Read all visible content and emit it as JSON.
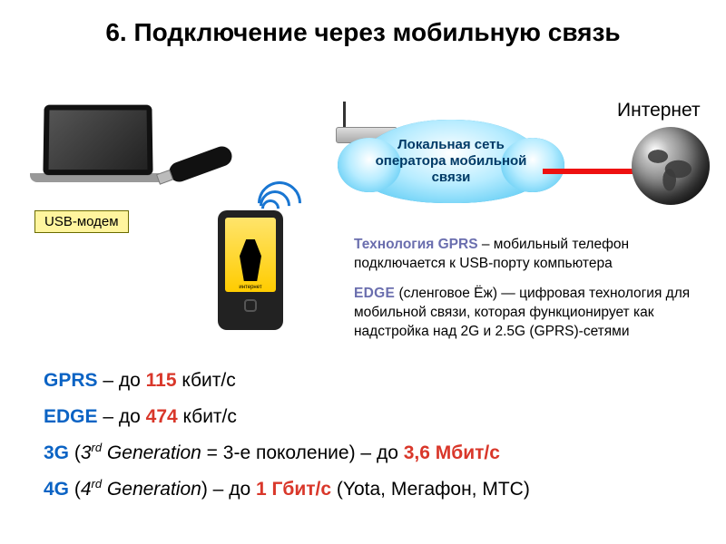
{
  "title": "6. Подключение через мобильную связь",
  "internet_label": "Интернет",
  "cloud_label": "Локальная сеть оператора мобильной связи",
  "usb_modem_label": "USB-модем",
  "phone_screen_caption": "интернет",
  "tech_text": {
    "gprs_kw": "Технология GPRS",
    "gprs_rest": " – мобильный телефон подключается к USB-порту компьютера",
    "edge_kw": "EDGE",
    "edge_rest": " (сленговое Ёж) — цифровая технология для мобильной связи, которая функционирует как надстройка над 2G и 2.5G (GPRS)-сетями"
  },
  "speeds": [
    {
      "proto": "GPRS",
      "dash": " – до ",
      "value": "115",
      "unit": " кбит/с",
      "extra_before": "",
      "extra_after": ""
    },
    {
      "proto": "EDGE",
      "dash": " – до ",
      "value": "474",
      "unit": " кбит/с",
      "extra_before": "",
      "extra_after": ""
    },
    {
      "proto": "3G",
      "dash": " – до ",
      "value": "3,6",
      "unit": " Мбит/с",
      "extra_before": " (3rd Generation = 3-е поколение)",
      "extra_after": ""
    },
    {
      "proto": "4G",
      "dash": " – до ",
      "value": "1",
      "unit": " Гбит/с",
      "extra_before": " (4rd Generation)",
      "extra_after": " (Yota, Мегафон, МТС)"
    }
  ],
  "colors": {
    "proto": "#0b63c4",
    "value": "#d9372a",
    "keyword": "#6a6eae",
    "cloud_gradient_inner": "#ffffff",
    "cloud_gradient_mid": "#b7ecff",
    "cloud_gradient_outer": "#3fc0f0",
    "red_line": "#ee1111",
    "usb_label_bg": "#fff59e",
    "wifi_arc": "#1976d2"
  },
  "impl_note": "3rd/4rd rendered with CSS .sup on 'rd'; values come from speeds[*].extra_before"
}
